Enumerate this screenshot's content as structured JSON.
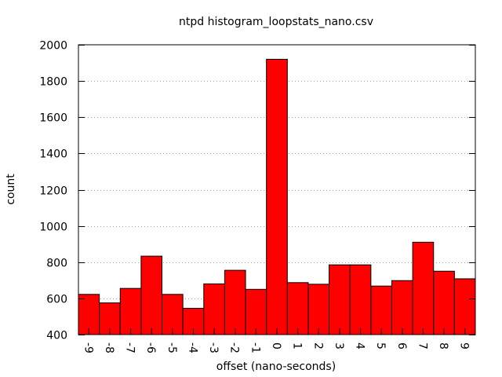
{
  "chart_data": {
    "type": "bar",
    "title": "ntpd histogram_loopstats_nano.csv",
    "xlabel": "offset (nano-seconds)",
    "ylabel": "count",
    "categories": [
      "-9",
      "-8",
      "-7",
      "-6",
      "-5",
      "-4",
      "-3",
      "-2",
      "-1",
      "0",
      "1",
      "2",
      "3",
      "4",
      "5",
      "6",
      "7",
      "8",
      "9"
    ],
    "values": [
      622,
      575,
      655,
      833,
      622,
      545,
      680,
      755,
      650,
      1920,
      687,
      678,
      785,
      785,
      668,
      698,
      910,
      750,
      708
    ],
    "ylim": [
      400,
      2000
    ],
    "yticks": [
      400,
      600,
      800,
      1000,
      1200,
      1400,
      1600,
      1800,
      2000
    ],
    "grid": true,
    "bar_color": "#ff0000",
    "grid_color": "#a0a0a0"
  }
}
